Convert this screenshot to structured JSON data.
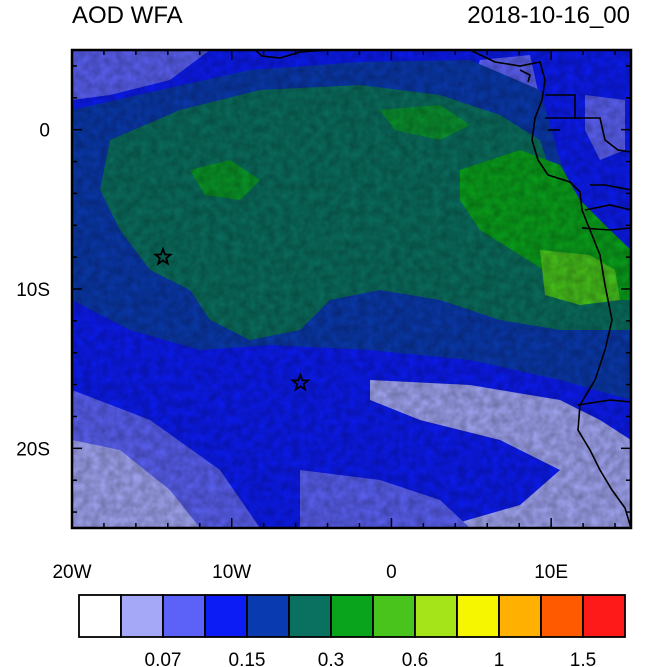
{
  "title": "AOD WFA",
  "timestamp": "2018-10-16_00",
  "map": {
    "lon_range": [
      -20,
      15
    ],
    "lat_range": [
      -25,
      5
    ],
    "x_ticks": [
      {
        "lon": -20,
        "label": "20W"
      },
      {
        "lon": -10,
        "label": "10W"
      },
      {
        "lon": 0,
        "label": "0"
      },
      {
        "lon": 10,
        "label": "10E"
      }
    ],
    "y_ticks": [
      {
        "lat": 0,
        "label": "0"
      },
      {
        "lat": -10,
        "label": "10S"
      },
      {
        "lat": -20,
        "label": "20S"
      }
    ],
    "stars": [
      {
        "lon": -14.3,
        "lat": -8.0,
        "name": "star-marker-ascension"
      },
      {
        "lon": -5.7,
        "lat": -15.9,
        "name": "star-marker-st-helena"
      }
    ]
  },
  "colorbar": {
    "colors": [
      "#ffffff",
      "#a4a8f7",
      "#5c62f8",
      "#0c1cf5",
      "#0a3ab0",
      "#0a7060",
      "#0aa31c",
      "#48c41c",
      "#a6e41a",
      "#f6f600",
      "#ffb000",
      "#ff5a00",
      "#ff1a1a"
    ],
    "labels": [
      {
        "after_box": 2,
        "text": "0.07"
      },
      {
        "after_box": 4,
        "text": "0.15"
      },
      {
        "after_box": 6,
        "text": "0.3"
      },
      {
        "after_box": 8,
        "text": "0.6"
      },
      {
        "after_box": 10,
        "text": "1"
      },
      {
        "after_box": 12,
        "text": "1.5"
      }
    ]
  }
}
